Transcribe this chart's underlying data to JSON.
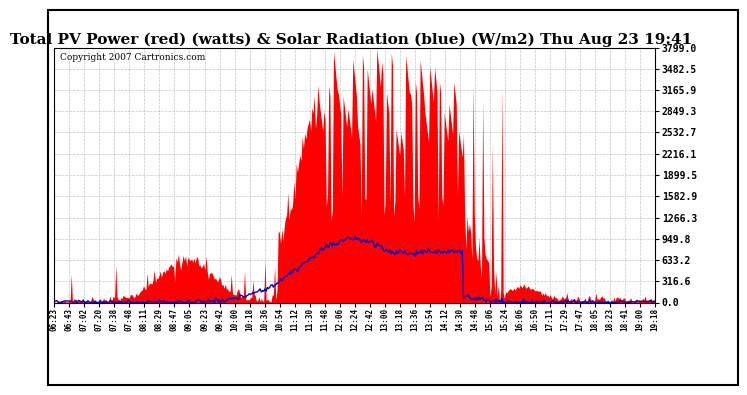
{
  "title": "Total PV Power (red) (watts) & Solar Radiation (blue) (W/m2) Thu Aug 23 19:41",
  "copyright": "Copyright 2007 Cartronics.com",
  "ylim": [
    0.0,
    3799.0
  ],
  "yticks": [
    0.0,
    316.6,
    633.2,
    949.8,
    1266.3,
    1582.9,
    1899.5,
    2216.1,
    2532.7,
    2849.3,
    3165.9,
    3482.5,
    3799.0
  ],
  "ytick_labels": [
    "0.0",
    "316.6",
    "633.2",
    "949.8",
    "1266.3",
    "1582.9",
    "1899.5",
    "2216.1",
    "2532.7",
    "2849.3",
    "3165.9",
    "3482.5",
    "3799.0"
  ],
  "background_color": "#ffffff",
  "plot_bg_color": "#ffffff",
  "grid_color": "#aaaaaa",
  "pv_color": "#ff0000",
  "solar_color": "#0000cc",
  "title_fontsize": 11,
  "copyright_fontsize": 6.5,
  "tick_fontsize": 7,
  "x_labels": [
    "06:23",
    "06:43",
    "07:02",
    "07:20",
    "07:38",
    "07:48",
    "08:11",
    "08:29",
    "08:47",
    "09:05",
    "09:23",
    "09:42",
    "10:00",
    "10:18",
    "10:36",
    "10:54",
    "11:12",
    "11:30",
    "11:48",
    "12:06",
    "12:24",
    "12:42",
    "13:00",
    "13:18",
    "13:36",
    "13:54",
    "14:12",
    "14:30",
    "14:48",
    "15:06",
    "15:24",
    "16:06",
    "16:50",
    "17:11",
    "17:29",
    "17:47",
    "18:05",
    "18:23",
    "18:41",
    "19:00",
    "19:18"
  ],
  "num_points": 500
}
